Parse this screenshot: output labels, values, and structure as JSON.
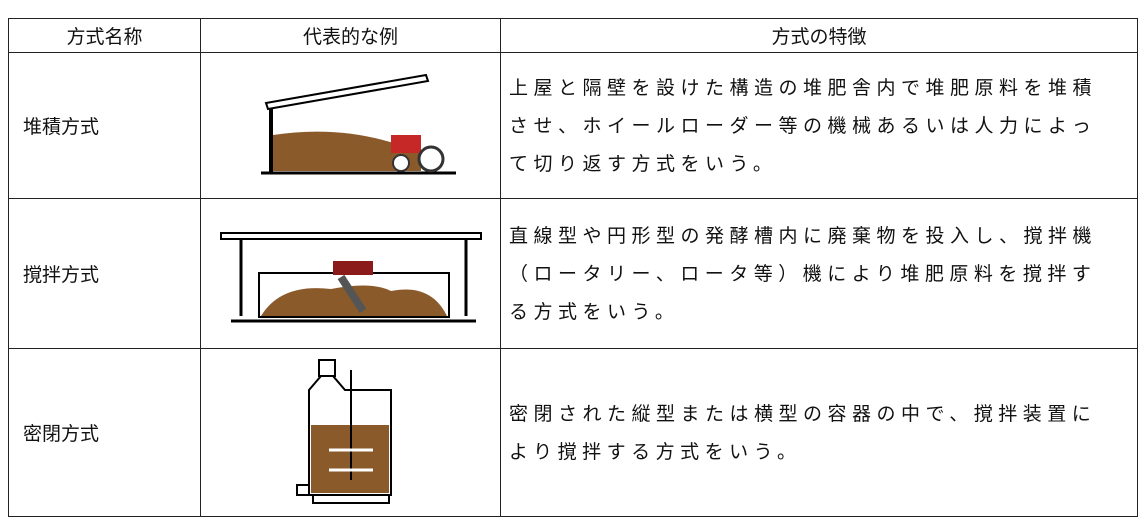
{
  "table": {
    "header": [
      "方式名称",
      "代表的な例",
      "方式の特徴"
    ],
    "rows": [
      {
        "name": "堆積方式",
        "description": [
          "上屋と隔壁を設けた構造の堆肥舎内で堆肥原料を堆積",
          "させ、ホイールローダー等の機械あるいは人力によっ",
          "て切り返す方式をいう。"
        ]
      },
      {
        "name": "撹拌方式",
        "description": [
          "直線型や円形型の発酵槽内に廃棄物を投入し、撹拌機",
          "（ロータリー、ロータ等）機により堆肥原料を撹拌す",
          "る方式をいう。"
        ]
      },
      {
        "name": "密閉方式",
        "description": [
          "密閉された縦型または横型の容器の中で、撹拌装置に",
          "より撹拌する方式をいう。"
        ]
      }
    ]
  }
}
